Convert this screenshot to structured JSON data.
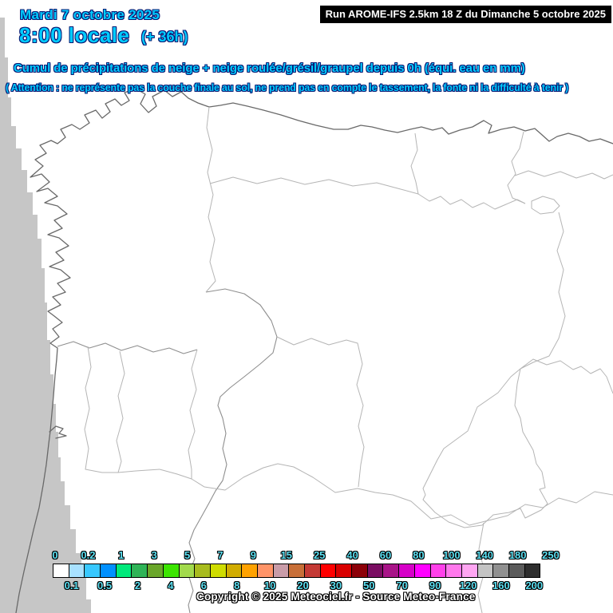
{
  "header": {
    "date": "Mardi 7 octobre 2025",
    "time": "8:00 locale",
    "forecast_offset": "(+ 36h)",
    "run_info": "Run AROME-IFS 2.5km 18 Z du Dimanche 5 octobre 2025"
  },
  "map": {
    "title": "Cumul de précipitations de neige + neige roulée/grésil/graupel depuis 0h (équi. eau en mm)",
    "warning": "( Attention : ne représente pas la couche finale au sol, ne prend pas en compte le tassement, la fonte ni la difficulté à tenir )"
  },
  "legend": {
    "boundaries": [
      "0",
      "0.1",
      "0.2",
      "0.5",
      "1",
      "2",
      "3",
      "4",
      "5",
      "6",
      "7",
      "8",
      "9",
      "10",
      "15",
      "20",
      "25",
      "30",
      "40",
      "50",
      "60",
      "70",
      "80",
      "90",
      "100",
      "120",
      "140",
      "160",
      "180",
      "200",
      "250"
    ],
    "cell_colors": [
      "#ffffff",
      "#a8e1ff",
      "#38c8ff",
      "#0090ff",
      "#00e97b",
      "#2fb457",
      "#6aa62a",
      "#3ce500",
      "#a2da4c",
      "#a8bc1e",
      "#cfdc00",
      "#d1ac00",
      "#ffa200",
      "#ff9468",
      "#c99ca8",
      "#c86f38",
      "#c43a35",
      "#ff0000",
      "#d90000",
      "#8c0008",
      "#7a0d62",
      "#a81488",
      "#d600c8",
      "#ff00ff",
      "#ff40ea",
      "#ff78ec",
      "#ffa6f2",
      "#c3c3c3",
      "#909090",
      "#5b5b5b",
      "#2e2e2e"
    ]
  },
  "footer": {
    "copyright": "Copyright © 2025 Meteociel.fr - Source Meteo-France"
  },
  "colors": {
    "accent_text": "#00ccff",
    "text_outline": "#0a1a73",
    "legend_label": "#5ce0f2",
    "sea_out_of_domain": "#c6c6c6",
    "coastline": "#696969",
    "country_border": "#8f8f8f",
    "region_border": "#b5b5b5",
    "run_box_bg": "#000000",
    "run_box_text": "#ffffff"
  }
}
